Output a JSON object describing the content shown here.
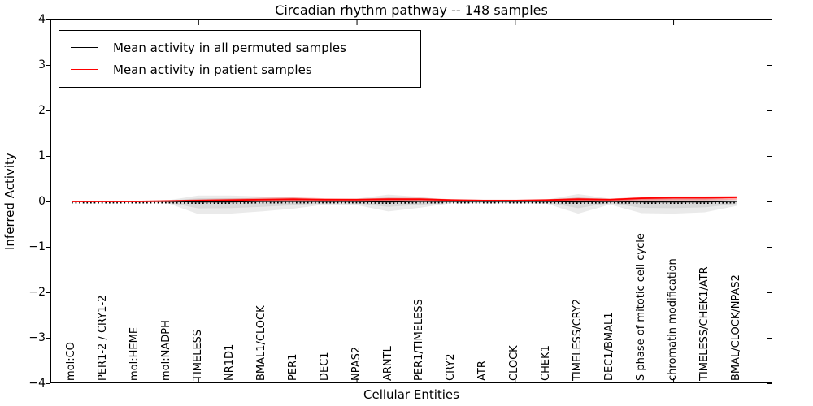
{
  "chart_data": {
    "type": "line",
    "title": "Circadian rhythm pathway -- 148 samples",
    "xlabel": "Cellular Entities",
    "ylabel": "Inferred Activity",
    "ylim": [
      -4,
      4
    ],
    "ytick_values": [
      4,
      3,
      2,
      1,
      0,
      -1,
      -2,
      -3,
      -4
    ],
    "ytick_labels": [
      "4",
      "3",
      "2",
      "1",
      "0",
      "−1",
      "−2",
      "−3",
      "−4"
    ],
    "xtick_major_indices": [
      4,
      9,
      14,
      19
    ],
    "grid": false,
    "legend_position": "upper left",
    "categories": [
      "mol:CO",
      "PER1-2 / CRY1-2",
      "mol:HEME",
      "mol:NADPH",
      "TIMELESS",
      "NR1D1",
      "BMAL1/CLOCK",
      "PER1",
      "DEC1",
      "NPAS2",
      "ARNTL",
      "PER1/TIMELESS",
      "CRY2",
      "ATR",
      "CLOCK",
      "CHEK1",
      "TIMELESS/CRY2",
      "DEC1/BMAL1",
      "S phase of mitotic cell cycle",
      "chromatin modification",
      "TIMELESS/CHEK1/ATR",
      "BMAL/CLOCK/NPAS2"
    ],
    "series": [
      {
        "name": "Mean activity in all permuted samples",
        "color": "#000000",
        "line_style": "solid-with-dash-marks",
        "values": [
          0.0,
          0.0,
          0.0,
          0.0,
          -0.01,
          -0.01,
          0.0,
          0.0,
          0.0,
          0.0,
          -0.01,
          0.0,
          0.0,
          0.0,
          0.0,
          0.0,
          -0.01,
          0.0,
          -0.01,
          -0.01,
          -0.01,
          0.0
        ]
      },
      {
        "name": "Mean activity in patient samples",
        "color": "#ff0000",
        "line_style": "solid",
        "values": [
          0.0,
          0.0,
          0.0,
          0.01,
          0.02,
          0.03,
          0.04,
          0.05,
          0.04,
          0.04,
          0.05,
          0.05,
          0.03,
          0.02,
          0.02,
          0.03,
          0.05,
          0.04,
          0.07,
          0.08,
          0.08,
          0.09
        ]
      }
    ],
    "bands": [
      {
        "name": "permuted-samples-range",
        "color": "#888888",
        "opacity": 0.18,
        "upper": [
          0.01,
          0.01,
          0.01,
          0.02,
          0.13,
          0.13,
          0.11,
          0.09,
          0.05,
          0.06,
          0.15,
          0.1,
          0.03,
          0.03,
          0.03,
          0.04,
          0.16,
          0.06,
          0.08,
          0.08,
          0.08,
          0.04
        ],
        "lower": [
          -0.01,
          -0.01,
          -0.01,
          -0.03,
          -0.28,
          -0.27,
          -0.22,
          -0.16,
          -0.07,
          -0.08,
          -0.22,
          -0.14,
          -0.04,
          -0.04,
          -0.04,
          -0.05,
          -0.27,
          -0.07,
          -0.26,
          -0.27,
          -0.24,
          -0.1
        ]
      },
      {
        "name": "patient-samples-range",
        "color": "#ff0000",
        "opacity": 0.28,
        "upper": [
          0.01,
          0.01,
          0.01,
          0.02,
          0.05,
          0.06,
          0.08,
          0.09,
          0.07,
          0.06,
          0.08,
          0.08,
          0.05,
          0.04,
          0.04,
          0.05,
          0.08,
          0.06,
          0.1,
          0.11,
          0.11,
          0.12
        ],
        "lower": [
          -0.01,
          -0.01,
          -0.01,
          -0.01,
          0.0,
          0.0,
          0.01,
          0.01,
          0.01,
          0.01,
          0.01,
          0.02,
          0.01,
          0.0,
          0.0,
          0.0,
          0.02,
          0.01,
          0.04,
          0.05,
          0.05,
          0.06
        ]
      }
    ]
  }
}
